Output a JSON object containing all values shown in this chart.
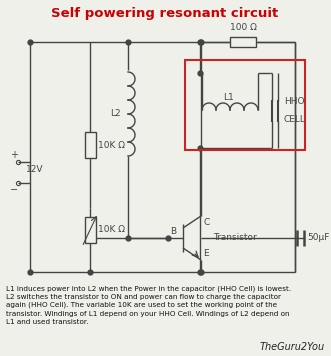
{
  "title": "Self powering resonant circuit",
  "title_color": "#cc0000",
  "title_fontsize": 9.5,
  "bg_color": "#f0f0eb",
  "description": "L1 induces power into L2 when the Power in the capacitor (HHO Cell) is lowest.\nL2 switches the transistor to ON and power can flow to charge the capacitor\nagain (HHO Cell). The variable 10K are used to set the working point of the\ntransistor. Windings of L1 depend on your HHO Cell. Windings of L2 depend on\nL1 and used transistor.",
  "credit": "TheGuru2You",
  "line_color": "#444444",
  "red_box_color": "#cc2222",
  "component_labels": {
    "resistor_top": "100 Ω",
    "resistor_left_top": "10K Ω",
    "resistor_left_bot": "10K Ω",
    "inductor_L2": "L2",
    "inductor_L1": "L1",
    "capacitor_bot": "50μF",
    "hho_line1": "HHO",
    "hho_line2": "CELL",
    "transistor": "Transistor",
    "transistor_C": "C",
    "transistor_B": "B",
    "transistor_E": "E",
    "voltage_plus": "+",
    "voltage_minus": "−",
    "voltage_val": "12V"
  }
}
